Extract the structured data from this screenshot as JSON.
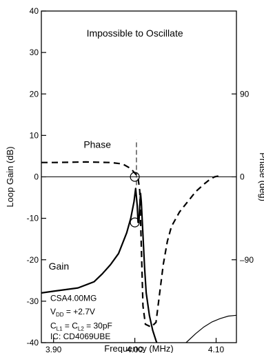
{
  "chart_data": {
    "type": "line",
    "title": "",
    "xlabel": "Frequency (MHz)",
    "ylabel_left": "Loop Gain (dB)",
    "ylabel_right": "Phase (deg)",
    "xlim": [
      3.885,
      4.125
    ],
    "ylim_left": [
      -40,
      40
    ],
    "ylim_right": [
      -180,
      180
    ],
    "x_ticks": [
      {
        "value": 3.9,
        "label": "3.90"
      },
      {
        "value": 4.0,
        "label": "4.00"
      },
      {
        "value": 4.1,
        "label": "4.10"
      }
    ],
    "y_ticks_left": [
      {
        "value": 40,
        "label": "40"
      },
      {
        "value": 30,
        "label": "30"
      },
      {
        "value": 20,
        "label": "20"
      },
      {
        "value": 10,
        "label": "10"
      },
      {
        "value": 0,
        "label": "0"
      },
      {
        "value": -10,
        "label": "-10"
      },
      {
        "value": -20,
        "label": "-20"
      },
      {
        "value": -30,
        "label": "-30"
      },
      {
        "value": -40,
        "label": "-40"
      }
    ],
    "y_ticks_right": [
      {
        "value": 90,
        "label": "90"
      },
      {
        "value": 0,
        "label": "0"
      },
      {
        "value": -90,
        "label": "–90"
      }
    ],
    "annotations": {
      "title_note": "Impossible to Oscillate",
      "phase_label": "Phase",
      "gain_label": "Gain",
      "info_lines": [
        {
          "parts": [
            {
              "t": "CSA4.00MG"
            }
          ]
        },
        {
          "parts": [
            {
              "t": "V"
            },
            {
              "t": "DD",
              "sub": true
            },
            {
              "t": " = +2.7V"
            }
          ]
        },
        {
          "parts": [
            {
              "t": "C"
            },
            {
              "t": "L1",
              "sub": true
            },
            {
              "t": " = C"
            },
            {
              "t": "L2",
              "sub": true
            },
            {
              "t": " = 30pF"
            }
          ]
        },
        {
          "parts": [
            {
              "t": "IC: CD4069UBE"
            }
          ]
        }
      ]
    },
    "series": [
      {
        "name": "Gain",
        "axis": "left",
        "style": "solid",
        "points": [
          [
            3.885,
            -28.0
          ],
          [
            3.9,
            -27.6
          ],
          [
            3.93,
            -26.8
          ],
          [
            3.95,
            -25.3
          ],
          [
            3.96,
            -23.4
          ],
          [
            3.97,
            -21.2
          ],
          [
            3.98,
            -18.5
          ],
          [
            3.99,
            -13.5
          ],
          [
            3.995,
            -10.0
          ],
          [
            3.999,
            -6.0
          ],
          [
            4.001,
            -2.8
          ],
          [
            4.003,
            -7.0
          ],
          [
            4.004,
            -11.0
          ],
          [
            4.005,
            -11.0
          ],
          [
            4.006,
            -7.0
          ],
          [
            4.007,
            -4.0
          ],
          [
            4.008,
            -6.0
          ],
          [
            4.01,
            -14.0
          ],
          [
            4.012,
            -22.0
          ],
          [
            4.014,
            -28.0
          ],
          [
            4.018,
            -33.5
          ],
          [
            4.022,
            -37.0
          ],
          [
            4.026,
            -39.5
          ],
          [
            4.027,
            -40.0
          ]
        ],
        "tail_points": [
          [
            4.063,
            -40.0
          ],
          [
            4.075,
            -37.8
          ],
          [
            4.085,
            -36.2
          ],
          [
            4.095,
            -35.0
          ],
          [
            4.105,
            -34.2
          ],
          [
            4.115,
            -33.6
          ],
          [
            4.125,
            -33.4
          ]
        ]
      },
      {
        "name": "Phase",
        "axis": "right",
        "style": "dashed",
        "points": [
          [
            3.885,
            15.6
          ],
          [
            3.9,
            15.6
          ],
          [
            3.94,
            16.2
          ],
          [
            3.97,
            15.6
          ],
          [
            3.985,
            14.0
          ],
          [
            3.995,
            9.0
          ],
          [
            3.999,
            5.0
          ],
          [
            4.002,
            2.0
          ],
          [
            4.004,
            -1.0
          ],
          [
            4.006,
            -15.0
          ],
          [
            4.008,
            -75.0
          ],
          [
            4.01,
            -140.0
          ],
          [
            4.013,
            -160.0
          ],
          [
            4.02,
            -163.0
          ],
          [
            4.026,
            -158.0
          ],
          [
            4.03,
            -130.0
          ],
          [
            4.035,
            -95.0
          ],
          [
            4.04,
            -70.0
          ],
          [
            4.045,
            -54.0
          ],
          [
            4.055,
            -38.0
          ],
          [
            4.065,
            -27.0
          ],
          [
            4.075,
            -16.0
          ],
          [
            4.085,
            -8.0
          ],
          [
            4.092,
            -3.0
          ],
          [
            4.098,
            0.0
          ],
          [
            4.103,
            1.0
          ]
        ]
      }
    ],
    "markers": [
      {
        "name": "zero-crossing-circle",
        "x": 4.0,
        "y_left": 0
      },
      {
        "name": "gain-margin-circle",
        "x": 4.0,
        "y_left": -11
      }
    ],
    "reference_lines": [
      {
        "name": "zero-db-line",
        "axis": "left",
        "y": 0,
        "style": "solid"
      },
      {
        "name": "resonance-line",
        "x": 4.002,
        "y_from": -2,
        "y_to": 9,
        "style": "dashed"
      }
    ],
    "grid": false,
    "legend": "none"
  }
}
